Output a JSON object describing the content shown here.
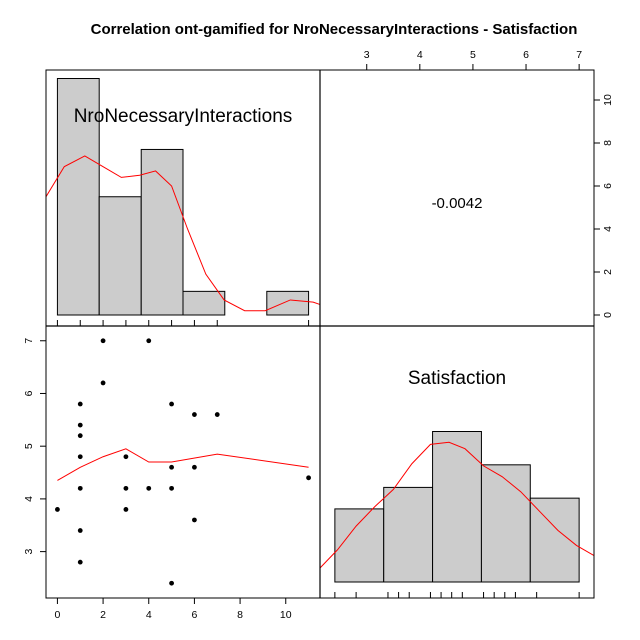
{
  "chart_data": {
    "type": "scatter-matrix",
    "title": "Correlation ont-gamified for NroNecessaryInteractions - Satisfaction",
    "variables": [
      "NroNecessaryInteractions",
      "Satisfaction"
    ],
    "correlation": "-0.0042",
    "x_range": [
      0,
      11
    ],
    "y_range": [
      2.4,
      7
    ],
    "x_ticks": [
      "0",
      "2",
      "4",
      "6",
      "8",
      "10"
    ],
    "y_ticks": [
      "3",
      "4",
      "5",
      "6",
      "7"
    ],
    "x_top_ticks": [
      "3",
      "4",
      "5",
      "6",
      "7"
    ],
    "y_right_ticks": [
      "0",
      "2",
      "4",
      "6",
      "8",
      "10"
    ],
    "hist_x": {
      "breaks": [
        0,
        1.83,
        3.67,
        5.5,
        7.33,
        9.17,
        11
      ],
      "counts": [
        11,
        5.5,
        7.7,
        1.1,
        0,
        1.1
      ],
      "rug": [
        0,
        1,
        2,
        3,
        4,
        5,
        6,
        7,
        11
      ],
      "density": [
        [
          -1.5,
          3.6
        ],
        [
          -0.5,
          5.5
        ],
        [
          0.3,
          6.9
        ],
        [
          1.2,
          7.4
        ],
        [
          2.0,
          6.9
        ],
        [
          2.8,
          6.4
        ],
        [
          3.6,
          6.5
        ],
        [
          4.3,
          6.7
        ],
        [
          5.0,
          6.0
        ],
        [
          5.7,
          4.0
        ],
        [
          6.5,
          1.9
        ],
        [
          7.3,
          0.7
        ],
        [
          8.2,
          0.2
        ],
        [
          9.1,
          0.2
        ],
        [
          10.2,
          0.7
        ],
        [
          11.2,
          0.6
        ],
        [
          12.0,
          0.3
        ]
      ]
    },
    "hist_y": {
      "breaks": [
        2.4,
        3.32,
        4.24,
        5.16,
        6.08,
        7.0
      ],
      "counts": [
        3.4,
        4.4,
        7.0,
        5.45,
        3.9
      ],
      "rug": [
        2.4,
        2.8,
        3.4,
        3.6,
        3.8,
        4.2,
        4.4,
        4.6,
        4.8,
        5.2,
        5.4,
        5.6,
        5.8,
        6.2,
        7.0
      ],
      "density": [
        [
          2.1,
          0.6
        ],
        [
          2.45,
          1.5
        ],
        [
          2.8,
          2.6
        ],
        [
          3.15,
          3.5
        ],
        [
          3.5,
          4.3
        ],
        [
          3.85,
          5.5
        ],
        [
          4.2,
          6.4
        ],
        [
          4.55,
          6.5
        ],
        [
          4.85,
          6.2
        ],
        [
          5.2,
          5.4
        ],
        [
          5.55,
          4.9
        ],
        [
          5.9,
          4.2
        ],
        [
          6.25,
          3.3
        ],
        [
          6.6,
          2.4
        ],
        [
          6.95,
          1.7
        ],
        [
          7.3,
          1.2
        ]
      ]
    },
    "points": [
      {
        "x": 0,
        "y": 3.8
      },
      {
        "x": 1,
        "y": 2.8
      },
      {
        "x": 1,
        "y": 3.4
      },
      {
        "x": 1,
        "y": 4.2
      },
      {
        "x": 1,
        "y": 4.8
      },
      {
        "x": 1,
        "y": 5.2
      },
      {
        "x": 1,
        "y": 5.4
      },
      {
        "x": 1,
        "y": 5.8
      },
      {
        "x": 2,
        "y": 6.2
      },
      {
        "x": 2,
        "y": 7.0
      },
      {
        "x": 3,
        "y": 3.8
      },
      {
        "x": 3,
        "y": 4.2
      },
      {
        "x": 3,
        "y": 4.8
      },
      {
        "x": 4,
        "y": 4.2
      },
      {
        "x": 4,
        "y": 7.0
      },
      {
        "x": 5,
        "y": 2.4
      },
      {
        "x": 5,
        "y": 4.2
      },
      {
        "x": 5,
        "y": 4.6
      },
      {
        "x": 5,
        "y": 5.8
      },
      {
        "x": 6,
        "y": 3.6
      },
      {
        "x": 6,
        "y": 4.6
      },
      {
        "x": 6,
        "y": 5.6
      },
      {
        "x": 7,
        "y": 5.6
      },
      {
        "x": 11,
        "y": 4.4
      }
    ],
    "smooth": [
      [
        0,
        4.35
      ],
      [
        1,
        4.6
      ],
      [
        2,
        4.8
      ],
      [
        3,
        4.95
      ],
      [
        4,
        4.7
      ],
      [
        5,
        4.7
      ],
      [
        7,
        4.85
      ],
      [
        11,
        4.6
      ]
    ],
    "colors": {
      "bar_fill": "#cccccc",
      "density": "#ff0000",
      "axis": "#000000",
      "point": "#000000"
    }
  }
}
